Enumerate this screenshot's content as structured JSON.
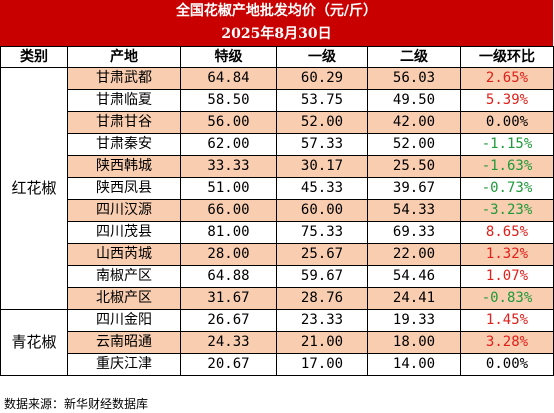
{
  "title": "全国花椒产地批发均价（元/斤）",
  "date": "2025年8月30日",
  "headers": [
    "类别",
    "产地",
    "特级",
    "一级",
    "二级",
    "一级环比"
  ],
  "groups": [
    {
      "category": "红花椒",
      "rows": [
        {
          "origin": "甘肃武都",
          "special": "64.84",
          "first": "60.29",
          "second": "56.03",
          "change": "2.65%",
          "trend": "up"
        },
        {
          "origin": "甘肃临夏",
          "special": "58.50",
          "first": "53.75",
          "second": "49.50",
          "change": "5.39%",
          "trend": "up"
        },
        {
          "origin": "甘肃甘谷",
          "special": "56.00",
          "first": "52.00",
          "second": "42.00",
          "change": "0.00%",
          "trend": "flat"
        },
        {
          "origin": "甘肃秦安",
          "special": "62.00",
          "first": "57.33",
          "second": "52.00",
          "change": "-1.15%",
          "trend": "down"
        },
        {
          "origin": "陕西韩城",
          "special": "33.33",
          "first": "30.17",
          "second": "25.50",
          "change": "-1.63%",
          "trend": "down"
        },
        {
          "origin": "陕西凤县",
          "special": "51.00",
          "first": "45.33",
          "second": "39.67",
          "change": "-0.73%",
          "trend": "down"
        },
        {
          "origin": "四川汉源",
          "special": "66.00",
          "first": "60.00",
          "second": "54.33",
          "change": "-3.23%",
          "trend": "down"
        },
        {
          "origin": "四川茂县",
          "special": "81.00",
          "first": "75.33",
          "second": "69.33",
          "change": "8.65%",
          "trend": "up"
        },
        {
          "origin": "山西芮城",
          "special": "28.00",
          "first": "25.67",
          "second": "22.00",
          "change": "1.32%",
          "trend": "up"
        },
        {
          "origin": "南椒产区",
          "special": "64.88",
          "first": "59.67",
          "second": "54.46",
          "change": "1.07%",
          "trend": "up"
        },
        {
          "origin": "北椒产区",
          "special": "31.67",
          "first": "28.76",
          "second": "24.41",
          "change": "-0.83%",
          "trend": "down"
        }
      ]
    },
    {
      "category": "青花椒",
      "rows": [
        {
          "origin": "四川金阳",
          "special": "26.67",
          "first": "23.33",
          "second": "19.33",
          "change": "1.45%",
          "trend": "up"
        },
        {
          "origin": "云南昭通",
          "special": "24.33",
          "first": "21.00",
          "second": "18.00",
          "change": "3.28%",
          "trend": "up"
        },
        {
          "origin": "重庆江津",
          "special": "20.67",
          "first": "17.00",
          "second": "14.00",
          "change": "0.00%",
          "trend": "flat"
        }
      ]
    }
  ],
  "source": "数据来源：新华财经数据库",
  "colors": {
    "header_red": "#c80000",
    "row_peach": "#f9cdb0",
    "up": "#e0201a",
    "down": "#1f9a3a"
  }
}
